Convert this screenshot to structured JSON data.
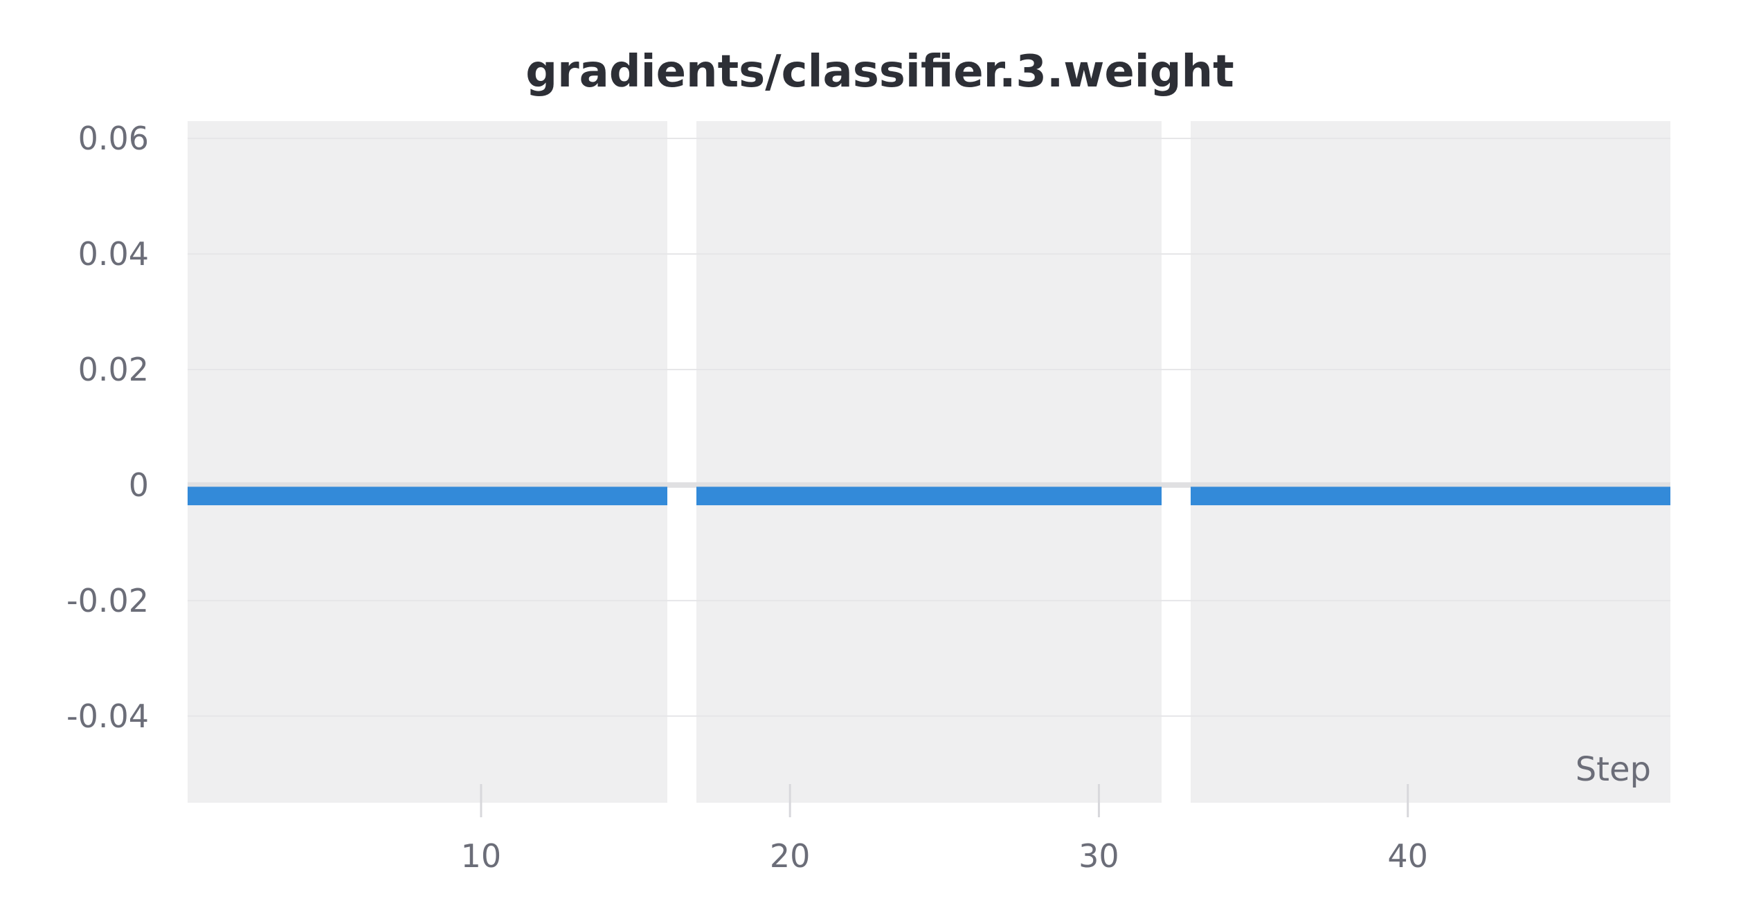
{
  "chart_data": {
    "type": "histogram-over-time",
    "title": "gradients/classifier.3.weight",
    "xlabel": "Step",
    "ylabel": "",
    "xlim": [
      0.5,
      48.5
    ],
    "ylim": [
      -0.055,
      0.063
    ],
    "x_ticks": [
      10,
      20,
      30,
      40
    ],
    "x_tick_labels": [
      "10",
      "20",
      "30",
      "40"
    ],
    "y_ticks": [
      0.06,
      0.04,
      0.02,
      0,
      -0.02,
      -0.04
    ],
    "y_tick_labels": [
      "0.06",
      "0.04",
      "0.02",
      "0",
      "-0.02",
      "-0.04"
    ],
    "panel_x_ranges": [
      [
        0.5,
        16.5
      ],
      [
        16.5,
        32.5
      ],
      [
        32.5,
        48.5
      ]
    ],
    "series": [
      {
        "x": [
          1,
          48
        ],
        "y_low": -0.0035,
        "y_high": -0.0003,
        "color": "#338ad9"
      }
    ],
    "zero_line_color": "#e0e0e2",
    "panel_color": "#efeff0",
    "grid": true,
    "legend": "none"
  }
}
